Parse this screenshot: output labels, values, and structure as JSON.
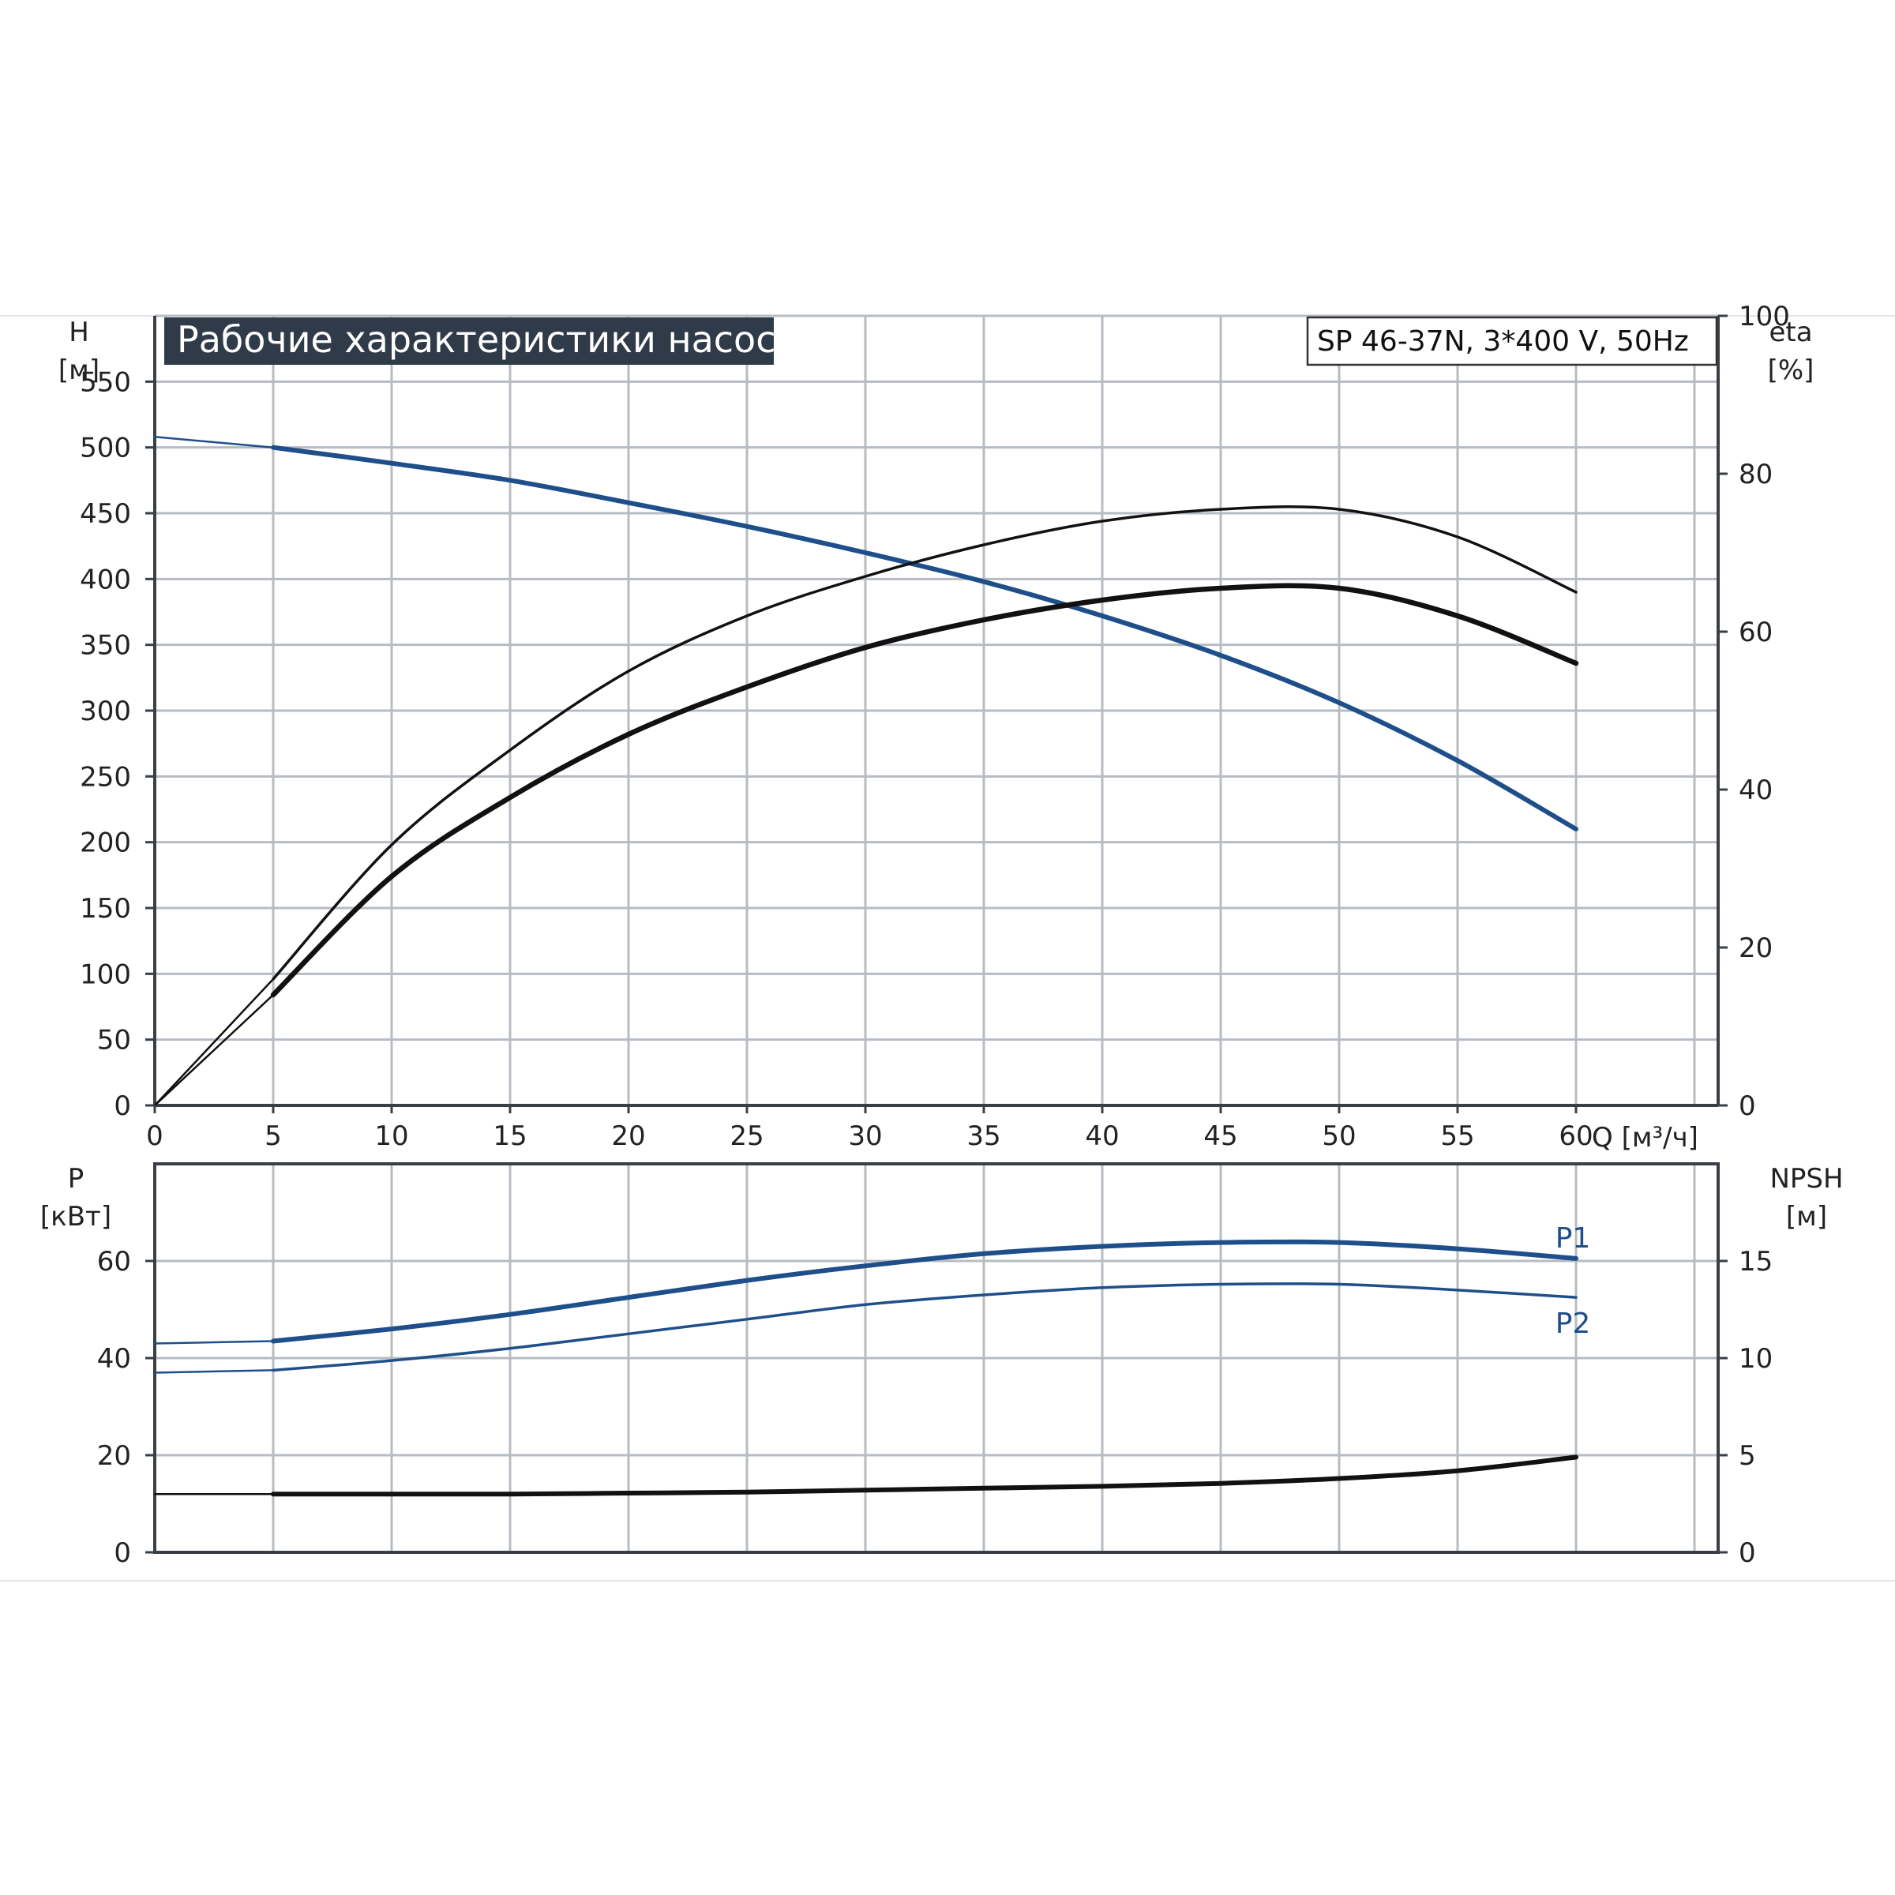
{
  "chart_data": {
    "title": "Рабочие характеристики насоса",
    "model": "SP 46-37N, 3*400 V, 50Hz",
    "x": {
      "label": "Q [м³/ч]",
      "range": [
        0,
        66
      ],
      "ticks": [
        0,
        5,
        10,
        15,
        20,
        25,
        30,
        35,
        40,
        45,
        50,
        55,
        60
      ]
    },
    "upper": {
      "type": "line",
      "left_axis": {
        "label_top": "H",
        "label_bottom": "[м]",
        "range": [
          0,
          600
        ],
        "ticks": [
          0,
          50,
          100,
          150,
          200,
          250,
          300,
          350,
          400,
          450,
          500,
          550
        ]
      },
      "right_axis": {
        "label_top": "eta",
        "label_bottom": "[%]",
        "range": [
          0,
          100
        ],
        "ticks": [
          0,
          20,
          40,
          60,
          80,
          100
        ]
      },
      "series": [
        {
          "id": "head",
          "axis": "left",
          "color": "#1f4f8a",
          "width": 6,
          "x": [
            0,
            5,
            10,
            15,
            20,
            25,
            30,
            35,
            40,
            45,
            50,
            55,
            60
          ],
          "y": [
            508,
            500,
            488,
            475,
            458,
            440,
            420,
            398,
            372,
            342,
            306,
            262,
            210
          ],
          "partload_until": 5
        },
        {
          "id": "eta-pump",
          "axis": "right",
          "color": "#111111",
          "width": 3.5,
          "x": [
            0,
            5,
            10,
            15,
            20,
            25,
            30,
            35,
            40,
            45,
            50,
            55,
            60
          ],
          "y": [
            0,
            16,
            33,
            45,
            55,
            62,
            67,
            71,
            74,
            75.5,
            75.5,
            72,
            65
          ]
        },
        {
          "id": "eta-total",
          "axis": "right",
          "color": "#111111",
          "width": 6.5,
          "x": [
            0,
            5,
            10,
            15,
            20,
            25,
            30,
            35,
            40,
            45,
            50,
            55,
            60
          ],
          "y": [
            0,
            14,
            29,
            39,
            47,
            53,
            58,
            61.5,
            64,
            65.5,
            65.5,
            62,
            56
          ]
        }
      ]
    },
    "lower": {
      "type": "line",
      "left_axis": {
        "label_top": "P",
        "label_bottom": "[кВт]",
        "range": [
          0,
          80
        ],
        "ticks": [
          0,
          20,
          40,
          60
        ]
      },
      "right_axis": {
        "label_top": "NPSH",
        "label_bottom": "[м]",
        "range": [
          0,
          20
        ],
        "ticks": [
          0,
          5,
          10,
          15
        ]
      },
      "series": [
        {
          "id": "p1",
          "name": "P1",
          "axis": "left",
          "color": "#1f4f8a",
          "width": 6,
          "x": [
            0,
            5,
            10,
            15,
            20,
            25,
            30,
            35,
            40,
            45,
            50,
            55,
            60
          ],
          "y": [
            43,
            43.5,
            46,
            49,
            52.5,
            56,
            59,
            61.5,
            63,
            63.8,
            63.8,
            62.5,
            60.5
          ]
        },
        {
          "id": "p2",
          "name": "P2",
          "axis": "left",
          "color": "#1f4f8a",
          "width": 3.5,
          "x": [
            0,
            5,
            10,
            15,
            20,
            25,
            30,
            35,
            40,
            45,
            50,
            55,
            60
          ],
          "y": [
            37,
            37.5,
            39.5,
            42,
            45,
            48,
            51,
            53,
            54.5,
            55.2,
            55.2,
            54,
            52.5
          ]
        },
        {
          "id": "npsh",
          "axis": "right",
          "color": "#111111",
          "width": 6,
          "x": [
            0,
            5,
            10,
            15,
            20,
            25,
            30,
            35,
            40,
            45,
            50,
            55,
            60
          ],
          "y": [
            3,
            3,
            3,
            3,
            3.05,
            3.1,
            3.2,
            3.3,
            3.4,
            3.55,
            3.8,
            4.2,
            4.9
          ]
        }
      ]
    }
  }
}
